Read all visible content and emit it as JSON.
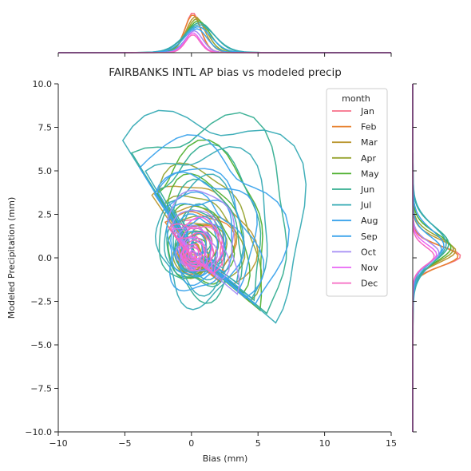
{
  "chart_data": {
    "type": "scatter",
    "subtype": "joint-kde",
    "title": "FAIRBANKS INTL AP bias vs modeled precip",
    "xlabel": "Bias (mm)",
    "ylabel": "Modeled Precipitation (mm)",
    "xlim": [
      -10,
      15
    ],
    "ylim": [
      -10,
      10
    ],
    "xticks": [
      "−10",
      "−5",
      "0",
      "5",
      "10",
      "15"
    ],
    "xtick_values": [
      -10,
      -5,
      0,
      5,
      10,
      15
    ],
    "yticks": [
      "−10.0",
      "−7.5",
      "−5.0",
      "−2.5",
      "0.0",
      "2.5",
      "5.0",
      "7.5",
      "10.0"
    ],
    "ytick_values": [
      -10,
      -7.5,
      -5,
      -2.5,
      0,
      2.5,
      5,
      7.5,
      10
    ],
    "grid": false,
    "legend_title": "month",
    "legend_placement": "top-right",
    "series": [
      {
        "name": "Jan",
        "color": "#f77189",
        "center": [
          0.1,
          0.1
        ],
        "spread": [
          0.7,
          0.6
        ],
        "tail": [
          2.0,
          3.0
        ]
      },
      {
        "name": "Feb",
        "color": "#e7812f",
        "center": [
          0.1,
          0.1
        ],
        "spread": [
          0.8,
          0.7
        ],
        "tail": [
          2.5,
          3.5
        ]
      },
      {
        "name": "Mar",
        "color": "#bb9832",
        "center": [
          0.3,
          0.4
        ],
        "spread": [
          1.1,
          1.0
        ],
        "tail": [
          3.5,
          5.0
        ]
      },
      {
        "name": "Apr",
        "color": "#97a431",
        "center": [
          0.4,
          0.5
        ],
        "spread": [
          1.3,
          1.2
        ],
        "tail": [
          3.8,
          5.5
        ]
      },
      {
        "name": "May",
        "color": "#50b131",
        "center": [
          0.5,
          0.6
        ],
        "spread": [
          1.6,
          1.5
        ],
        "tail": [
          4.5,
          6.5
        ]
      },
      {
        "name": "Jun",
        "color": "#34ae91",
        "center": [
          0.6,
          0.8
        ],
        "spread": [
          2.2,
          2.1
        ],
        "tail": [
          6.0,
          8.5
        ]
      },
      {
        "name": "Jul",
        "color": "#37abb5",
        "center": [
          0.6,
          0.8
        ],
        "spread": [
          2.4,
          2.3
        ],
        "tail": [
          6.5,
          9.5
        ]
      },
      {
        "name": "Aug",
        "color": "#3ba3ec",
        "center": [
          0.5,
          0.7
        ],
        "spread": [
          1.9,
          1.8
        ],
        "tail": [
          5.0,
          7.0
        ]
      },
      {
        "name": "Sep",
        "color": "#3ba3ec",
        "center": [
          0.4,
          0.5
        ],
        "spread": [
          1.3,
          1.2
        ],
        "tail": [
          3.5,
          5.5
        ]
      },
      {
        "name": "Oct",
        "color": "#a48cf4",
        "center": [
          0.2,
          0.3
        ],
        "spread": [
          0.9,
          0.8
        ],
        "tail": [
          2.5,
          4.5
        ]
      },
      {
        "name": "Nov",
        "color": "#e866f4",
        "center": [
          0.1,
          0.2
        ],
        "spread": [
          0.7,
          0.6
        ],
        "tail": [
          1.5,
          2.5
        ]
      },
      {
        "name": "Dec",
        "color": "#f668c2",
        "center": [
          0.1,
          0.1
        ],
        "spread": [
          0.6,
          0.5
        ],
        "tail": [
          1.5,
          2.5
        ]
      }
    ]
  }
}
